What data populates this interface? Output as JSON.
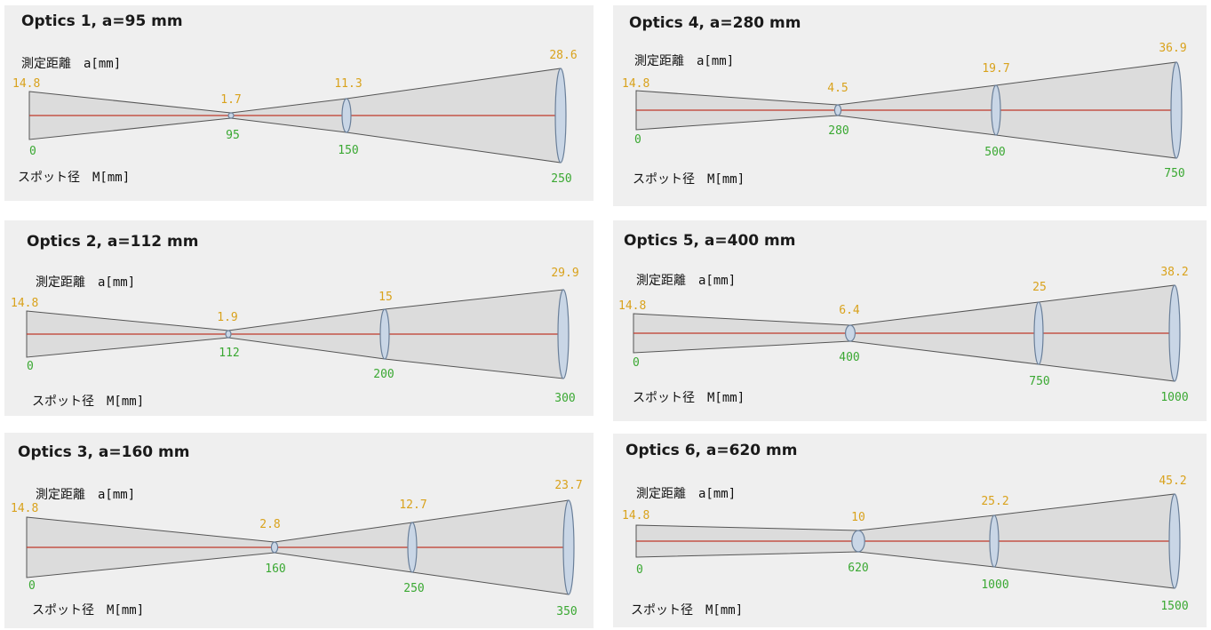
{
  "colors": {
    "spot": "#d9a21c",
    "distance": "#3aa832",
    "axis": "#c0392b",
    "cone_fill": "#dcdcdc",
    "cone_stroke": "#555555",
    "ellipse_fill": "#c9d6e6",
    "ellipse_stroke": "#6a7f99"
  },
  "distance_label": "測定距離　a[mm]",
  "spot_label": "スポット径　M[mm]",
  "panels": [
    {
      "title": "Optics 1, a=95 mm",
      "points": [
        {
          "d": "0",
          "s": "14.8"
        },
        {
          "d": "95",
          "s": "1.7"
        },
        {
          "d": "150",
          "s": "11.3"
        },
        {
          "d": "250",
          "s": "28.6"
        }
      ]
    },
    {
      "title": "Optics 2, a=112 mm",
      "points": [
        {
          "d": "0",
          "s": "14.8"
        },
        {
          "d": "112",
          "s": "1.9"
        },
        {
          "d": "200",
          "s": "15"
        },
        {
          "d": "300",
          "s": "29.9"
        }
      ]
    },
    {
      "title": "Optics 3, a=160 mm",
      "points": [
        {
          "d": "0",
          "s": "14.8"
        },
        {
          "d": "160",
          "s": "2.8"
        },
        {
          "d": "250",
          "s": "12.7"
        },
        {
          "d": "350",
          "s": "23.7"
        }
      ]
    },
    {
      "title": "Optics 4, a=280 mm",
      "points": [
        {
          "d": "0",
          "s": "14.8"
        },
        {
          "d": "280",
          "s": "4.5"
        },
        {
          "d": "500",
          "s": "19.7"
        },
        {
          "d": "750",
          "s": "36.9"
        }
      ]
    },
    {
      "title": "Optics 5, a=400 mm",
      "points": [
        {
          "d": "0",
          "s": "14.8"
        },
        {
          "d": "400",
          "s": "6.4"
        },
        {
          "d": "750",
          "s": "25"
        },
        {
          "d": "1000",
          "s": "38.2"
        }
      ]
    },
    {
      "title": "Optics 6, a=620 mm",
      "points": [
        {
          "d": "0",
          "s": "14.8"
        },
        {
          "d": "620",
          "s": "10"
        },
        {
          "d": "1000",
          "s": "25.2"
        },
        {
          "d": "1500",
          "s": "45.2"
        }
      ]
    }
  ]
}
